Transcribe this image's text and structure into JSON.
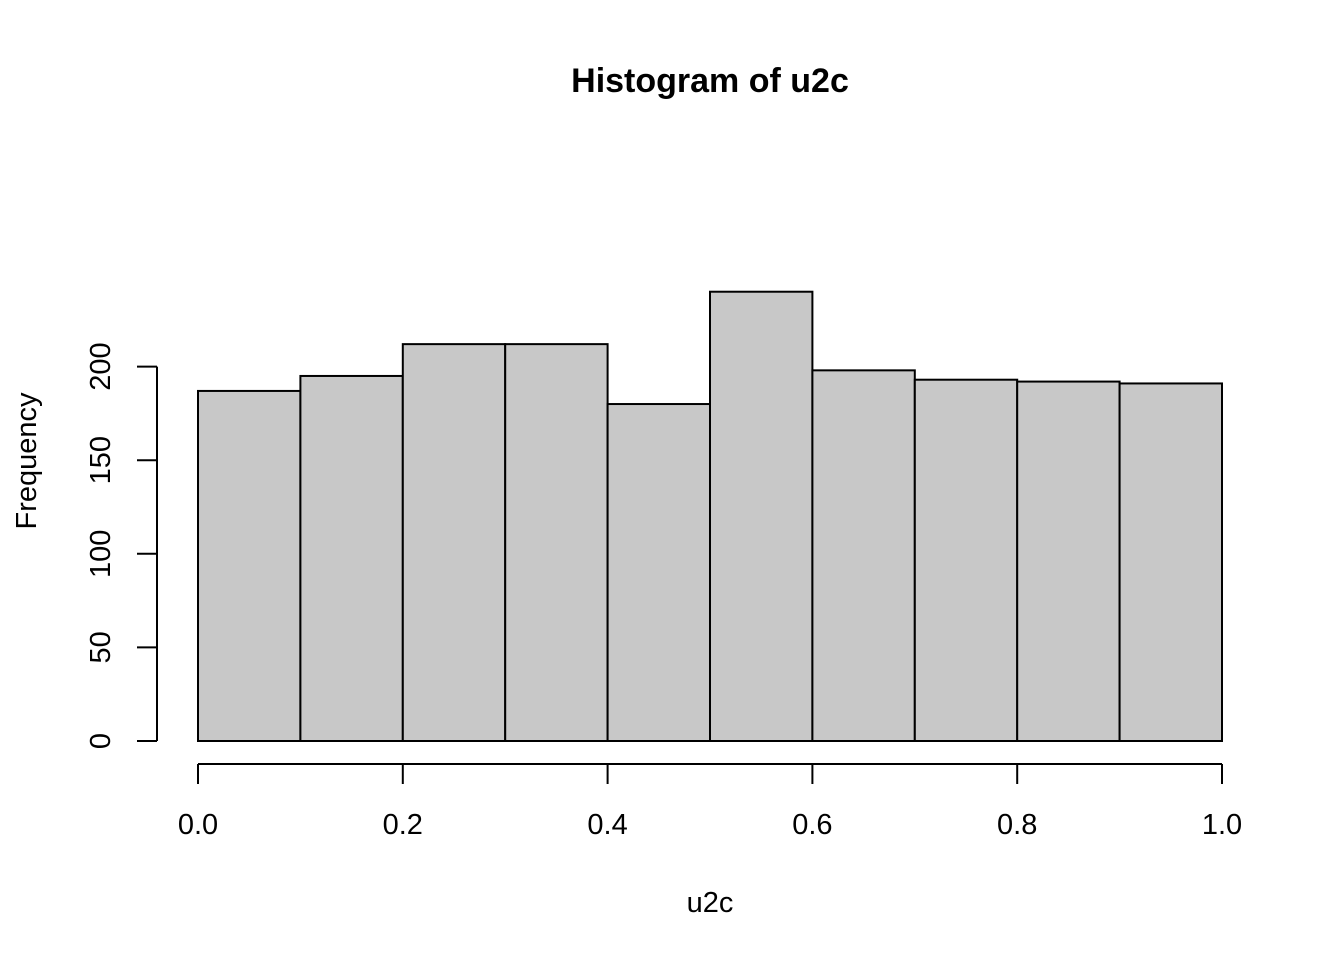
{
  "chart_data": {
    "type": "bar",
    "title": "Histogram of u2c",
    "xlabel": "u2c",
    "ylabel": "Frequency",
    "bins": [
      {
        "from": 0.0,
        "to": 0.1,
        "count": 187
      },
      {
        "from": 0.1,
        "to": 0.2,
        "count": 195
      },
      {
        "from": 0.2,
        "to": 0.3,
        "count": 212
      },
      {
        "from": 0.3,
        "to": 0.4,
        "count": 212
      },
      {
        "from": 0.4,
        "to": 0.5,
        "count": 180
      },
      {
        "from": 0.5,
        "to": 0.6,
        "count": 240
      },
      {
        "from": 0.6,
        "to": 0.7,
        "count": 198
      },
      {
        "from": 0.7,
        "to": 0.8,
        "count": 193
      },
      {
        "from": 0.8,
        "to": 0.9,
        "count": 192
      },
      {
        "from": 0.9,
        "to": 1.0,
        "count": 191
      }
    ],
    "xlim": [
      0,
      1
    ],
    "ylim": [
      0,
      240
    ],
    "x_ticks": [
      "0.0",
      "0.2",
      "0.4",
      "0.6",
      "0.8",
      "1.0"
    ],
    "y_ticks": [
      "0",
      "50",
      "100",
      "150",
      "200"
    ],
    "grid": false,
    "colors": {
      "bar_fill": "#c8c8c8",
      "bar_stroke": "#000000"
    }
  }
}
